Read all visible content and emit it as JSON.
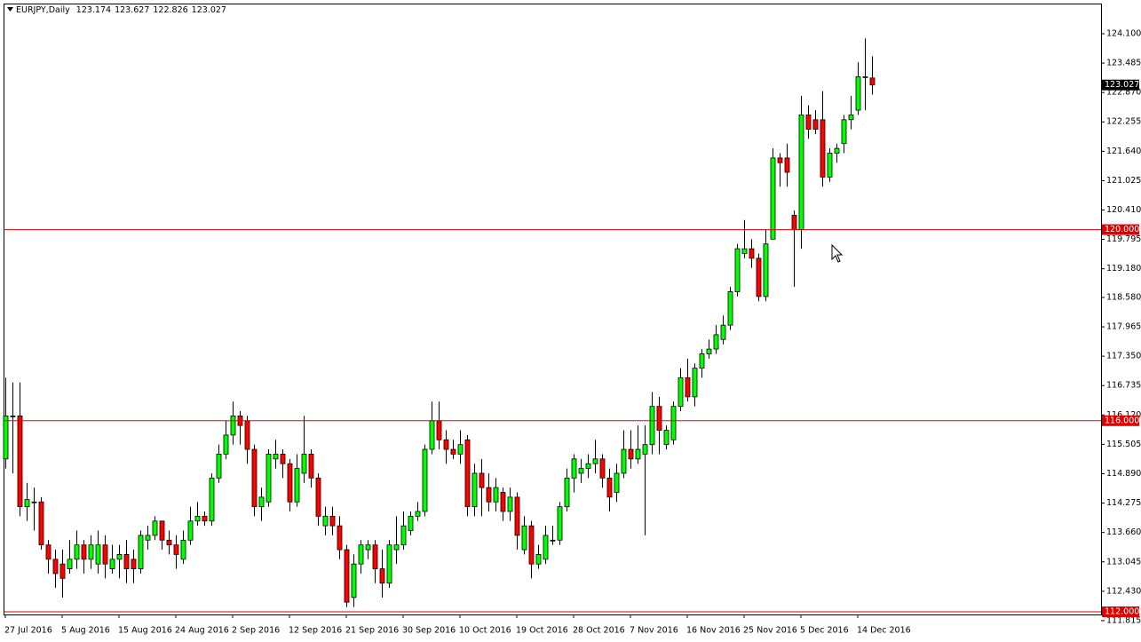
{
  "chart_data": {
    "type": "candlestick",
    "title": "EURJPY,Daily",
    "categories": [
      "27 Jul 2016",
      null,
      null,
      null,
      null,
      null,
      null,
      null,
      "5 Aug 2016",
      null,
      null,
      null,
      null,
      null,
      null,
      null,
      "15 Aug 2016",
      null,
      null,
      null,
      null,
      null,
      null,
      null,
      "24 Aug 2016",
      null,
      null,
      null,
      null,
      null,
      null,
      null,
      "2 Sep 2016",
      null,
      null,
      null,
      null,
      null,
      null,
      null,
      "12 Sep 2016",
      null,
      null,
      null,
      null,
      null,
      null,
      null,
      "21 Sep 2016",
      null,
      null,
      null,
      null,
      null,
      null,
      null,
      "30 Sep 2016",
      null,
      null,
      null,
      null,
      null,
      null,
      null,
      "10 Oct 2016",
      null,
      null,
      null,
      null,
      null,
      null,
      null,
      "19 Oct 2016",
      null,
      null,
      null,
      null,
      null,
      null,
      null,
      "28 Oct 2016",
      null,
      null,
      null,
      null,
      null,
      null,
      null,
      "7 Nov 2016",
      null,
      null,
      null,
      null,
      null,
      null,
      null,
      "16 Nov 2016",
      null,
      null,
      null,
      null,
      null,
      null,
      null,
      "25 Nov 2016",
      null,
      null,
      null,
      null,
      null,
      null,
      null,
      "5 Dec 2016",
      null,
      null,
      null,
      null,
      null,
      null,
      null,
      "14 Dec 2016",
      null,
      null
    ],
    "open": [
      115.2,
      116.1,
      116.1,
      114.2,
      114.3,
      114.3,
      113.4,
      113.1,
      113.0,
      112.9,
      113.1,
      113.4,
      113.1,
      113.0,
      113.4,
      112.9,
      113.1,
      113.2,
      113.1,
      112.9,
      113.5,
      113.6,
      113.9,
      113.5,
      113.4,
      113.1,
      113.5,
      113.9,
      114.0,
      113.9,
      114.8,
      115.3,
      115.7,
      116.1,
      116.0,
      115.4,
      114.2,
      114.3,
      115.2,
      115.3,
      115.1,
      114.3,
      114.9,
      115.3,
      114.8,
      113.8,
      114.0,
      113.8,
      113.3,
      112.3,
      113.0,
      113.3,
      113.4,
      112.9,
      112.6,
      113.3,
      113.4,
      113.7,
      114.0,
      114.1,
      115.4,
      116.0,
      115.6,
      115.4,
      115.3,
      115.6,
      114.2,
      114.9,
      114.6,
      114.3,
      114.5,
      114.1,
      114.4,
      113.3,
      113.8,
      113.0,
      113.1,
      113.5,
      113.5,
      114.2,
      114.8,
      114.9,
      115.0,
      115.1,
      115.2,
      114.8,
      114.5,
      114.9,
      115.4,
      115.2,
      115.3,
      115.5,
      116.3,
      115.5,
      115.6,
      116.3,
      116.9,
      116.5,
      117.1,
      117.4,
      117.5,
      117.7,
      118.0,
      118.7,
      119.5,
      119.6,
      119.4,
      118.6,
      119.8,
      121.5,
      121.5,
      120.3,
      120.0,
      122.4,
      122.3,
      122.3,
      121.1,
      121.6,
      121.8,
      122.3,
      122.5,
      123.2,
      123.174
    ],
    "high": [
      116.9,
      116.8,
      116.8,
      114.7,
      114.6,
      114.4,
      113.5,
      113.3,
      113.3,
      113.5,
      113.7,
      113.5,
      113.6,
      113.7,
      113.6,
      113.4,
      113.4,
      113.5,
      113.3,
      113.7,
      113.8,
      114.0,
      113.9,
      113.7,
      113.6,
      113.7,
      114.2,
      114.3,
      114.1,
      114.9,
      115.5,
      116.0,
      116.4,
      116.2,
      116.1,
      115.5,
      114.6,
      115.4,
      115.6,
      115.4,
      115.2,
      115.3,
      116.1,
      115.4,
      114.9,
      114.2,
      114.2,
      114.0,
      113.4,
      113.2,
      113.5,
      113.5,
      113.5,
      113.3,
      113.5,
      114.0,
      114.1,
      114.1,
      114.3,
      115.5,
      116.4,
      116.4,
      115.8,
      115.6,
      115.8,
      115.7,
      115.1,
      115.2,
      114.9,
      114.8,
      114.6,
      114.6,
      114.5,
      114.0,
      113.9,
      113.4,
      113.8,
      113.8,
      114.3,
      115.0,
      115.3,
      115.2,
      115.3,
      115.6,
      115.3,
      115.0,
      115.1,
      115.8,
      115.8,
      115.9,
      115.9,
      116.6,
      116.5,
      115.9,
      116.4,
      117.1,
      117.3,
      117.2,
      117.5,
      117.7,
      118.0,
      118.2,
      118.8,
      119.7,
      120.2,
      119.8,
      119.5,
      120.0,
      121.7,
      121.6,
      121.8,
      120.4,
      122.8,
      122.6,
      122.5,
      122.9,
      121.7,
      121.8,
      122.4,
      122.8,
      123.5,
      124.0,
      123.627
    ],
    "low": [
      115.0,
      114.9,
      114.0,
      113.9,
      113.7,
      113.3,
      112.8,
      112.5,
      112.3,
      112.8,
      112.9,
      112.8,
      112.9,
      112.8,
      112.7,
      112.8,
      112.7,
      112.6,
      112.6,
      112.8,
      113.3,
      113.5,
      113.3,
      113.2,
      112.9,
      113.0,
      113.4,
      113.8,
      113.8,
      113.8,
      114.7,
      115.2,
      115.5,
      115.5,
      115.1,
      114.0,
      113.9,
      114.2,
      115.0,
      114.8,
      114.1,
      114.2,
      114.7,
      114.6,
      113.8,
      113.6,
      113.6,
      113.1,
      112.1,
      112.1,
      112.8,
      113.1,
      112.6,
      112.3,
      112.5,
      113.0,
      113.3,
      113.6,
      113.9,
      114.0,
      115.3,
      115.4,
      115.1,
      115.2,
      115.1,
      114.0,
      114.0,
      114.0,
      114.1,
      114.1,
      113.9,
      113.9,
      113.3,
      113.2,
      112.7,
      112.9,
      113.0,
      113.4,
      113.4,
      114.1,
      114.5,
      114.7,
      114.8,
      114.9,
      114.6,
      114.1,
      114.3,
      114.8,
      115.0,
      115.1,
      113.6,
      115.3,
      115.3,
      115.4,
      115.5,
      116.2,
      116.4,
      116.3,
      116.9,
      117.3,
      117.4,
      117.6,
      117.9,
      118.6,
      119.4,
      119.2,
      118.5,
      118.5,
      119.8,
      120.9,
      120.9,
      118.8,
      119.6,
      121.9,
      122.0,
      120.9,
      121.0,
      121.4,
      121.6,
      122.1,
      122.4,
      122.5,
      122.826
    ],
    "close": [
      116.1,
      116.1,
      114.2,
      114.35,
      114.3,
      113.4,
      113.1,
      112.8,
      112.7,
      113.1,
      113.4,
      113.1,
      113.4,
      113.4,
      113.0,
      113.1,
      113.2,
      112.9,
      112.9,
      113.6,
      113.6,
      113.9,
      113.5,
      113.4,
      113.2,
      113.5,
      113.9,
      114.0,
      113.9,
      114.8,
      115.3,
      115.7,
      116.1,
      115.9,
      115.4,
      114.2,
      114.4,
      115.3,
      115.3,
      115.1,
      114.3,
      115.0,
      115.3,
      114.8,
      114.0,
      114.0,
      113.8,
      113.3,
      112.2,
      113.0,
      113.4,
      113.4,
      112.9,
      112.6,
      113.4,
      113.4,
      113.8,
      114.0,
      114.1,
      115.4,
      116.0,
      115.6,
      115.4,
      115.3,
      115.5,
      114.2,
      114.9,
      114.6,
      114.3,
      114.6,
      114.1,
      114.4,
      113.6,
      113.8,
      113.0,
      113.2,
      113.6,
      113.5,
      114.2,
      114.8,
      115.2,
      115.0,
      115.1,
      115.2,
      114.8,
      114.4,
      114.9,
      115.4,
      115.2,
      115.4,
      115.5,
      116.3,
      115.8,
      115.8,
      116.3,
      116.9,
      116.5,
      117.1,
      117.4,
      117.5,
      117.8,
      118.0,
      118.7,
      119.6,
      119.6,
      119.4,
      118.6,
      119.7,
      121.5,
      121.4,
      121.2,
      120.0,
      122.4,
      122.1,
      122.1,
      121.1,
      121.6,
      121.7,
      122.3,
      122.4,
      123.2,
      123.2,
      123.027
    ],
    "up_color": "#00ff00",
    "down_color": "#ff0000",
    "wick_color": "#000000",
    "ylim": [
      111.944,
      124.713
    ],
    "yticks": [
      {
        "value": 124.1,
        "label": "124.100"
      },
      {
        "value": 123.485,
        "label": "123.485"
      },
      {
        "value": 122.87,
        "label": "122.870"
      },
      {
        "value": 122.255,
        "label": "122.255"
      },
      {
        "value": 121.64,
        "label": "121.640"
      },
      {
        "value": 121.025,
        "label": "121.025"
      },
      {
        "value": 120.41,
        "label": "120.410"
      },
      {
        "value": 119.795,
        "label": "119.795"
      },
      {
        "value": 119.18,
        "label": "119.180"
      },
      {
        "value": 118.58,
        "label": "118.580"
      },
      {
        "value": 117.965,
        "label": "117.965"
      },
      {
        "value": 117.35,
        "label": "117.350"
      },
      {
        "value": 116.735,
        "label": "116.735"
      },
      {
        "value": 116.12,
        "label": "116.120"
      },
      {
        "value": 115.505,
        "label": "115.505"
      },
      {
        "value": 114.89,
        "label": "114.890"
      },
      {
        "value": 114.275,
        "label": "114.275"
      },
      {
        "value": 113.66,
        "label": "113.660"
      },
      {
        "value": 113.045,
        "label": "113.045"
      },
      {
        "value": 112.43,
        "label": "112.430"
      },
      {
        "value": 111.815,
        "label": "111.815"
      }
    ],
    "hlines": [
      {
        "value": 120,
        "label": "120.000"
      },
      {
        "value": 116,
        "label": "116.000"
      },
      {
        "value": 112,
        "label": "112.000"
      }
    ],
    "hline_color": "#e00000"
  }
}
